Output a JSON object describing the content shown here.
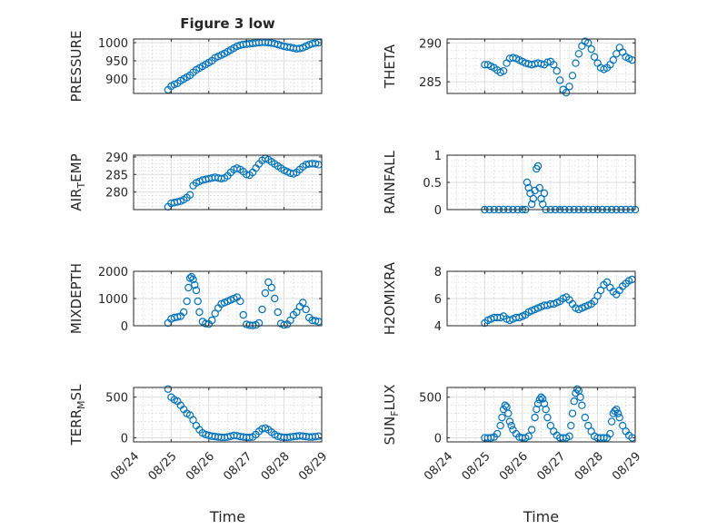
{
  "figure": {
    "title": "Figure 3 low",
    "marker_color": "#0072BD"
  },
  "chart_data": [
    {
      "type": "scatter",
      "title": "Figure 3 low",
      "ylabel": "PRESSURE",
      "xlabel": "",
      "xlim": [
        "08/24",
        "08/29"
      ],
      "ylim": [
        860,
        1010
      ],
      "yticks": [
        900,
        950,
        1000
      ],
      "xticklabels": [],
      "grid": true,
      "x": [
        "08/24 22:00",
        "08/25 00:00",
        "08/25 02:00",
        "08/25 04:00",
        "08/25 06:00",
        "08/25 08:00",
        "08/25 10:00",
        "08/25 12:00",
        "08/25 14:00",
        "08/25 16:00",
        "08/25 18:00",
        "08/25 20:00",
        "08/25 22:00",
        "08/26 00:00",
        "08/26 02:00",
        "08/26 04:00",
        "08/26 06:00",
        "08/26 08:00",
        "08/26 10:00",
        "08/26 12:00",
        "08/26 14:00",
        "08/26 16:00",
        "08/26 18:00",
        "08/26 20:00",
        "08/26 22:00",
        "08/27 00:00",
        "08/27 02:00",
        "08/27 04:00",
        "08/27 06:00",
        "08/27 08:00",
        "08/27 10:00",
        "08/27 12:00",
        "08/27 14:00",
        "08/27 16:00",
        "08/27 18:00",
        "08/27 20:00",
        "08/27 22:00",
        "08/28 00:00",
        "08/28 02:00",
        "08/28 04:00",
        "08/28 06:00",
        "08/28 08:00",
        "08/28 10:00",
        "08/28 12:00",
        "08/28 14:00",
        "08/28 16:00",
        "08/28 18:00",
        "08/28 20:00",
        "08/28 22:00"
      ],
      "y": [
        870,
        880,
        885,
        888,
        895,
        900,
        905,
        910,
        918,
        925,
        930,
        935,
        940,
        945,
        950,
        958,
        962,
        966,
        970,
        975,
        980,
        985,
        990,
        993,
        995,
        996,
        997,
        998,
        999,
        1000,
        1001,
        1001,
        1000,
        999,
        997,
        995,
        992,
        990,
        988,
        987,
        985,
        983,
        984,
        986,
        990,
        994,
        997,
        999,
        1000
      ]
    },
    {
      "type": "scatter",
      "ylabel": "THETA",
      "xlabel": "",
      "xlim": [
        "08/24",
        "08/29"
      ],
      "ylim": [
        283.5,
        290.5
      ],
      "yticks": [
        285,
        290
      ],
      "xticklabels": [],
      "grid": true,
      "x": [
        "08/25 00:00",
        "08/25 02:00",
        "08/25 04:00",
        "08/25 06:00",
        "08/25 08:00",
        "08/25 10:00",
        "08/25 12:00",
        "08/25 14:00",
        "08/25 16:00",
        "08/25 18:00",
        "08/25 20:00",
        "08/25 22:00",
        "08/26 00:00",
        "08/26 02:00",
        "08/26 04:00",
        "08/26 06:00",
        "08/26 08:00",
        "08/26 10:00",
        "08/26 12:00",
        "08/26 14:00",
        "08/26 16:00",
        "08/26 18:00",
        "08/26 20:00",
        "08/26 22:00",
        "08/27 00:00",
        "08/27 02:00",
        "08/27 04:00",
        "08/27 06:00",
        "08/27 08:00",
        "08/27 10:00",
        "08/27 12:00",
        "08/27 14:00",
        "08/27 16:00",
        "08/27 18:00",
        "08/27 20:00",
        "08/27 22:00",
        "08/28 00:00",
        "08/28 02:00",
        "08/28 04:00",
        "08/28 06:00",
        "08/28 08:00",
        "08/28 10:00",
        "08/28 12:00",
        "08/28 14:00",
        "08/28 16:00",
        "08/28 18:00",
        "08/28 20:00",
        "08/28 22:00"
      ],
      "y": [
        287.2,
        287.2,
        287.0,
        286.8,
        286.5,
        286.2,
        286.4,
        287.4,
        288.0,
        288.1,
        288.0,
        287.8,
        287.6,
        287.4,
        287.3,
        287.2,
        287.3,
        287.4,
        287.3,
        287.2,
        287.5,
        287.6,
        287.2,
        286.4,
        285.2,
        284.0,
        283.6,
        284.4,
        285.8,
        287.4,
        288.6,
        289.6,
        290.2,
        290.0,
        289.2,
        288.2,
        287.4,
        286.8,
        286.6,
        286.8,
        287.2,
        287.8,
        288.6,
        289.4,
        288.8,
        288.2,
        288.0,
        287.8
      ]
    },
    {
      "type": "scatter",
      "ylabel": "AIR_TEMP",
      "xlabel": "",
      "xlim": [
        "08/24",
        "08/29"
      ],
      "ylim": [
        275,
        290.5
      ],
      "yticks": [
        280,
        285,
        290
      ],
      "xticklabels": [],
      "grid": true,
      "x": [
        "08/24 22:00",
        "08/25 00:00",
        "08/25 02:00",
        "08/25 04:00",
        "08/25 06:00",
        "08/25 08:00",
        "08/25 10:00",
        "08/25 12:00",
        "08/25 14:00",
        "08/25 16:00",
        "08/25 18:00",
        "08/25 20:00",
        "08/25 22:00",
        "08/26 00:00",
        "08/26 02:00",
        "08/26 04:00",
        "08/26 06:00",
        "08/26 08:00",
        "08/26 10:00",
        "08/26 12:00",
        "08/26 14:00",
        "08/26 16:00",
        "08/26 18:00",
        "08/26 20:00",
        "08/26 22:00",
        "08/27 00:00",
        "08/27 02:00",
        "08/27 04:00",
        "08/27 06:00",
        "08/27 08:00",
        "08/27 10:00",
        "08/27 12:00",
        "08/27 14:00",
        "08/27 16:00",
        "08/27 18:00",
        "08/27 20:00",
        "08/27 22:00",
        "08/28 00:00",
        "08/28 02:00",
        "08/28 04:00",
        "08/28 06:00",
        "08/28 08:00",
        "08/28 10:00",
        "08/28 12:00",
        "08/28 14:00",
        "08/28 16:00",
        "08/28 18:00",
        "08/28 20:00",
        "08/28 22:00"
      ],
      "y": [
        275.8,
        276.8,
        277.0,
        277.2,
        277.4,
        277.8,
        278.4,
        279.2,
        281.8,
        282.6,
        283.0,
        283.4,
        283.6,
        283.8,
        284.0,
        284.2,
        284.0,
        283.8,
        284.0,
        284.6,
        285.6,
        286.4,
        286.8,
        286.4,
        285.8,
        285.0,
        284.8,
        285.6,
        286.8,
        288.0,
        289.0,
        289.6,
        289.2,
        288.6,
        288.0,
        287.4,
        286.8,
        286.2,
        285.8,
        285.4,
        285.2,
        285.6,
        286.4,
        287.2,
        287.8,
        288.0,
        288.1,
        288.0,
        287.8
      ]
    },
    {
      "type": "scatter",
      "ylabel": "RAINFALL",
      "xlabel": "",
      "xlim": [
        "08/24",
        "08/29"
      ],
      "ylim": [
        0,
        1
      ],
      "yticks": [
        0,
        0.5,
        1
      ],
      "xticklabels": [],
      "grid": true,
      "x": [
        "08/25 00:00",
        "08/25 03:00",
        "08/25 06:00",
        "08/25 09:00",
        "08/25 12:00",
        "08/25 15:00",
        "08/25 18:00",
        "08/25 21:00",
        "08/26 00:00",
        "08/26 02:00",
        "08/26 03:00",
        "08/26 04:00",
        "08/26 05:00",
        "08/26 06:00",
        "08/26 07:00",
        "08/26 08:00",
        "08/26 09:00",
        "08/26 10:00",
        "08/26 11:00",
        "08/26 12:00",
        "08/26 13:00",
        "08/26 14:00",
        "08/26 15:00",
        "08/26 18:00",
        "08/26 21:00",
        "08/27 00:00",
        "08/27 03:00",
        "08/27 06:00",
        "08/27 09:00",
        "08/27 12:00",
        "08/27 15:00",
        "08/27 18:00",
        "08/27 21:00",
        "08/28 00:00",
        "08/28 03:00",
        "08/28 06:00",
        "08/28 09:00",
        "08/28 12:00",
        "08/28 15:00",
        "08/28 18:00",
        "08/28 21:00",
        "08/29 00:00"
      ],
      "y": [
        0,
        0,
        0,
        0,
        0,
        0,
        0,
        0,
        0,
        0,
        0.5,
        0.4,
        0.3,
        0.1,
        0.2,
        0.35,
        0.75,
        0.8,
        0.4,
        0.2,
        0.1,
        0.3,
        0,
        0,
        0,
        0,
        0,
        0,
        0,
        0,
        0,
        0,
        0,
        0,
        0,
        0,
        0,
        0,
        0,
        0,
        0,
        0
      ]
    },
    {
      "type": "scatter",
      "ylabel": "MIXDEPTH",
      "xlabel": "",
      "xlim": [
        "08/24",
        "08/29"
      ],
      "ylim": [
        0,
        2000
      ],
      "yticks": [
        0,
        1000,
        2000
      ],
      "xticklabels": [],
      "grid": true,
      "x": [
        "08/24 22:00",
        "08/25 00:00",
        "08/25 02:00",
        "08/25 04:00",
        "08/25 06:00",
        "08/25 08:00",
        "08/25 10:00",
        "08/25 11:00",
        "08/25 12:00",
        "08/25 13:00",
        "08/25 14:00",
        "08/25 15:00",
        "08/25 16:00",
        "08/25 17:00",
        "08/25 18:00",
        "08/25 20:00",
        "08/25 22:00",
        "08/26 00:00",
        "08/26 02:00",
        "08/26 04:00",
        "08/26 06:00",
        "08/26 08:00",
        "08/26 10:00",
        "08/26 12:00",
        "08/26 14:00",
        "08/26 16:00",
        "08/26 18:00",
        "08/26 20:00",
        "08/26 22:00",
        "08/27 00:00",
        "08/27 02:00",
        "08/27 04:00",
        "08/27 06:00",
        "08/27 08:00",
        "08/27 10:00",
        "08/27 12:00",
        "08/27 14:00",
        "08/27 16:00",
        "08/27 18:00",
        "08/27 20:00",
        "08/27 22:00",
        "08/28 00:00",
        "08/28 02:00",
        "08/28 04:00",
        "08/28 06:00",
        "08/28 08:00",
        "08/28 10:00",
        "08/28 12:00",
        "08/28 14:00",
        "08/28 16:00",
        "08/28 18:00",
        "08/28 20:00",
        "08/28 22:00"
      ],
      "y": [
        100,
        250,
        300,
        320,
        350,
        500,
        900,
        1400,
        1750,
        1800,
        1700,
        1500,
        1300,
        900,
        500,
        150,
        80,
        60,
        200,
        450,
        650,
        800,
        850,
        900,
        950,
        1000,
        1050,
        900,
        400,
        50,
        20,
        10,
        30,
        100,
        600,
        1200,
        1600,
        1400,
        1000,
        500,
        80,
        30,
        50,
        200,
        400,
        500,
        700,
        850,
        600,
        300,
        200,
        180,
        150
      ]
    },
    {
      "type": "scatter",
      "ylabel": "H2OMIXRA",
      "xlabel": "",
      "xlim": [
        "08/24",
        "08/29"
      ],
      "ylim": [
        4,
        8
      ],
      "yticks": [
        4,
        6,
        8
      ],
      "xticklabels": [],
      "grid": true,
      "x": [
        "08/25 00:00",
        "08/25 02:00",
        "08/25 04:00",
        "08/25 06:00",
        "08/25 08:00",
        "08/25 10:00",
        "08/25 12:00",
        "08/25 14:00",
        "08/25 16:00",
        "08/25 18:00",
        "08/25 20:00",
        "08/25 22:00",
        "08/26 00:00",
        "08/26 02:00",
        "08/26 04:00",
        "08/26 06:00",
        "08/26 08:00",
        "08/26 10:00",
        "08/26 12:00",
        "08/26 14:00",
        "08/26 16:00",
        "08/26 18:00",
        "08/26 20:00",
        "08/26 22:00",
        "08/27 00:00",
        "08/27 02:00",
        "08/27 04:00",
        "08/27 06:00",
        "08/27 08:00",
        "08/27 10:00",
        "08/27 12:00",
        "08/27 14:00",
        "08/27 16:00",
        "08/27 18:00",
        "08/27 20:00",
        "08/27 22:00",
        "08/28 00:00",
        "08/28 02:00",
        "08/28 04:00",
        "08/28 06:00",
        "08/28 08:00",
        "08/28 10:00",
        "08/28 12:00",
        "08/28 14:00",
        "08/28 16:00",
        "08/28 18:00",
        "08/28 20:00",
        "08/28 22:00"
      ],
      "y": [
        4.2,
        4.4,
        4.5,
        4.6,
        4.6,
        4.6,
        4.7,
        4.5,
        4.4,
        4.5,
        4.6,
        4.6,
        4.7,
        4.8,
        5.0,
        5.1,
        5.2,
        5.3,
        5.4,
        5.5,
        5.5,
        5.6,
        5.6,
        5.7,
        5.8,
        6.0,
        6.1,
        5.9,
        5.6,
        5.3,
        5.2,
        5.3,
        5.4,
        5.5,
        5.6,
        5.8,
        6.2,
        6.6,
        7.0,
        7.2,
        6.8,
        6.5,
        6.3,
        6.6,
        6.9,
        7.1,
        7.3,
        7.4
      ]
    },
    {
      "type": "scatter",
      "ylabel": "TERR_MSL",
      "xlabel": "Time",
      "xlim": [
        "08/24",
        "08/29"
      ],
      "ylim": [
        -50,
        620
      ],
      "yticks": [
        0,
        500
      ],
      "xticklabels": [
        "08/24",
        "08/25",
        "08/26",
        "08/27",
        "08/28",
        "08/29"
      ],
      "grid": true,
      "x": [
        "08/24 22:00",
        "08/25 00:00",
        "08/25 02:00",
        "08/25 04:00",
        "08/25 06:00",
        "08/25 08:00",
        "08/25 10:00",
        "08/25 12:00",
        "08/25 14:00",
        "08/25 16:00",
        "08/25 18:00",
        "08/25 20:00",
        "08/25 22:00",
        "08/26 00:00",
        "08/26 02:00",
        "08/26 04:00",
        "08/26 06:00",
        "08/26 08:00",
        "08/26 10:00",
        "08/26 12:00",
        "08/26 14:00",
        "08/26 16:00",
        "08/26 18:00",
        "08/26 20:00",
        "08/26 22:00",
        "08/27 00:00",
        "08/27 02:00",
        "08/27 04:00",
        "08/27 06:00",
        "08/27 08:00",
        "08/27 10:00",
        "08/27 12:00",
        "08/27 14:00",
        "08/27 16:00",
        "08/27 18:00",
        "08/27 20:00",
        "08/27 22:00",
        "08/28 00:00",
        "08/28 02:00",
        "08/28 04:00",
        "08/28 06:00",
        "08/28 08:00",
        "08/28 10:00",
        "08/28 12:00",
        "08/28 14:00",
        "08/28 16:00",
        "08/28 18:00",
        "08/28 20:00",
        "08/28 22:00"
      ],
      "y": [
        600,
        500,
        470,
        450,
        400,
        350,
        300,
        280,
        220,
        150,
        100,
        60,
        40,
        30,
        20,
        15,
        10,
        5,
        5,
        10,
        20,
        30,
        25,
        15,
        10,
        5,
        5,
        10,
        40,
        80,
        110,
        120,
        100,
        70,
        40,
        20,
        10,
        5,
        5,
        10,
        15,
        20,
        25,
        20,
        15,
        10,
        10,
        15,
        20
      ]
    },
    {
      "type": "scatter",
      "ylabel": "SUN_FLUX",
      "xlabel": "Time",
      "xlim": [
        "08/24",
        "08/29"
      ],
      "ylim": [
        -50,
        620
      ],
      "yticks": [
        0,
        500
      ],
      "xticklabels": [
        "08/24",
        "08/25",
        "08/26",
        "08/27",
        "08/28",
        "08/29"
      ],
      "grid": true,
      "x": [
        "08/25 00:00",
        "08/25 02:00",
        "08/25 04:00",
        "08/25 06:00",
        "08/25 08:00",
        "08/25 10:00",
        "08/25 11:00",
        "08/25 12:00",
        "08/25 13:00",
        "08/25 14:00",
        "08/25 15:00",
        "08/25 16:00",
        "08/25 17:00",
        "08/25 18:00",
        "08/25 20:00",
        "08/25 22:00",
        "08/26 00:00",
        "08/26 02:00",
        "08/26 04:00",
        "08/26 06:00",
        "08/26 08:00",
        "08/26 09:00",
        "08/26 10:00",
        "08/26 11:00",
        "08/26 12:00",
        "08/26 13:00",
        "08/26 14:00",
        "08/26 15:00",
        "08/26 16:00",
        "08/26 18:00",
        "08/26 20:00",
        "08/26 22:00",
        "08/27 00:00",
        "08/27 02:00",
        "08/27 04:00",
        "08/27 06:00",
        "08/27 07:00",
        "08/27 08:00",
        "08/27 09:00",
        "08/27 10:00",
        "08/27 11:00",
        "08/27 12:00",
        "08/27 13:00",
        "08/27 14:00",
        "08/27 16:00",
        "08/27 18:00",
        "08/27 20:00",
        "08/27 22:00",
        "08/28 00:00",
        "08/28 02:00",
        "08/28 04:00",
        "08/28 06:00",
        "08/28 08:00",
        "08/28 09:00",
        "08/28 10:00",
        "08/28 11:00",
        "08/28 12:00",
        "08/28 13:00",
        "08/28 14:00",
        "08/28 16:00",
        "08/28 18:00",
        "08/28 20:00",
        "08/28 22:00"
      ],
      "y": [
        0,
        0,
        0,
        10,
        50,
        150,
        250,
        350,
        400,
        380,
        300,
        200,
        150,
        100,
        50,
        10,
        0,
        0,
        20,
        100,
        250,
        350,
        420,
        470,
        500,
        480,
        420,
        350,
        250,
        150,
        80,
        30,
        0,
        0,
        0,
        20,
        150,
        300,
        450,
        550,
        600,
        580,
        500,
        400,
        250,
        150,
        80,
        20,
        0,
        0,
        0,
        0,
        50,
        200,
        300,
        330,
        350,
        300,
        250,
        150,
        80,
        30,
        0
      ]
    }
  ]
}
